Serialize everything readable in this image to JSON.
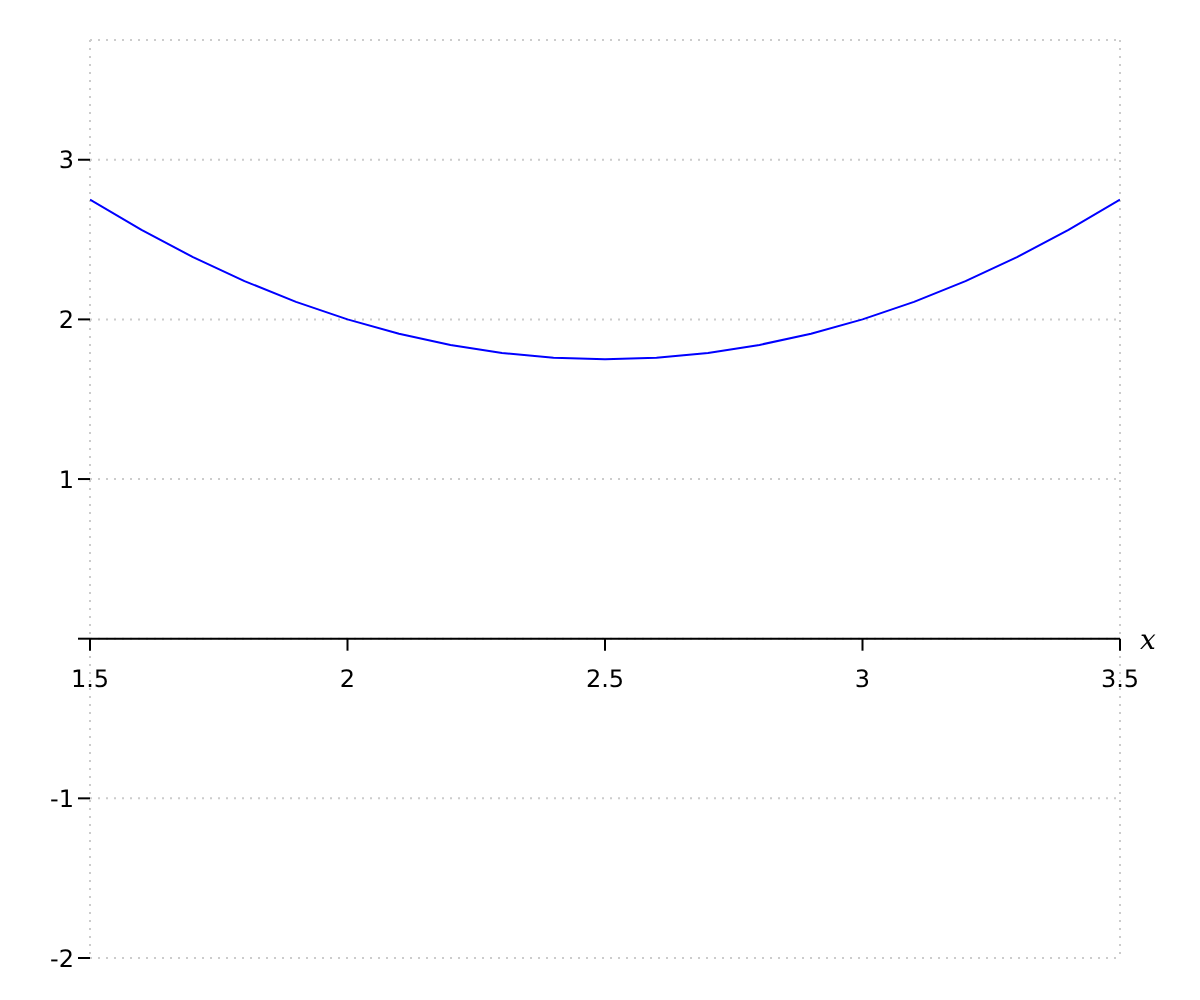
{
  "chart_data": {
    "type": "line",
    "xlabel": "x",
    "x": [
      1.5,
      1.6,
      1.7,
      1.8,
      1.9,
      2.0,
      2.1,
      2.2,
      2.3,
      2.4,
      2.5,
      2.6,
      2.7,
      2.8,
      2.9,
      3.0,
      3.1,
      3.2,
      3.3,
      3.4,
      3.5
    ],
    "series": [
      {
        "color": "#0000ff",
        "values": [
          2.75,
          2.56,
          2.39,
          2.24,
          2.11,
          2.0,
          1.91,
          1.84,
          1.79,
          1.76,
          1.75,
          1.76,
          1.79,
          1.84,
          1.91,
          2.0,
          2.11,
          2.24,
          2.39,
          2.56,
          2.75
        ]
      }
    ],
    "xlim": [
      1.5,
      3.5
    ],
    "xticks": [
      1.5,
      2,
      2.5,
      3,
      3.5
    ],
    "ylim": [
      -2,
      3.75
    ],
    "yticks": [
      -2,
      -1,
      {
        "value": 0,
        "label": null
      },
      1,
      2,
      3
    ],
    "grid": true,
    "marker": "none",
    "line_style": "solid"
  }
}
